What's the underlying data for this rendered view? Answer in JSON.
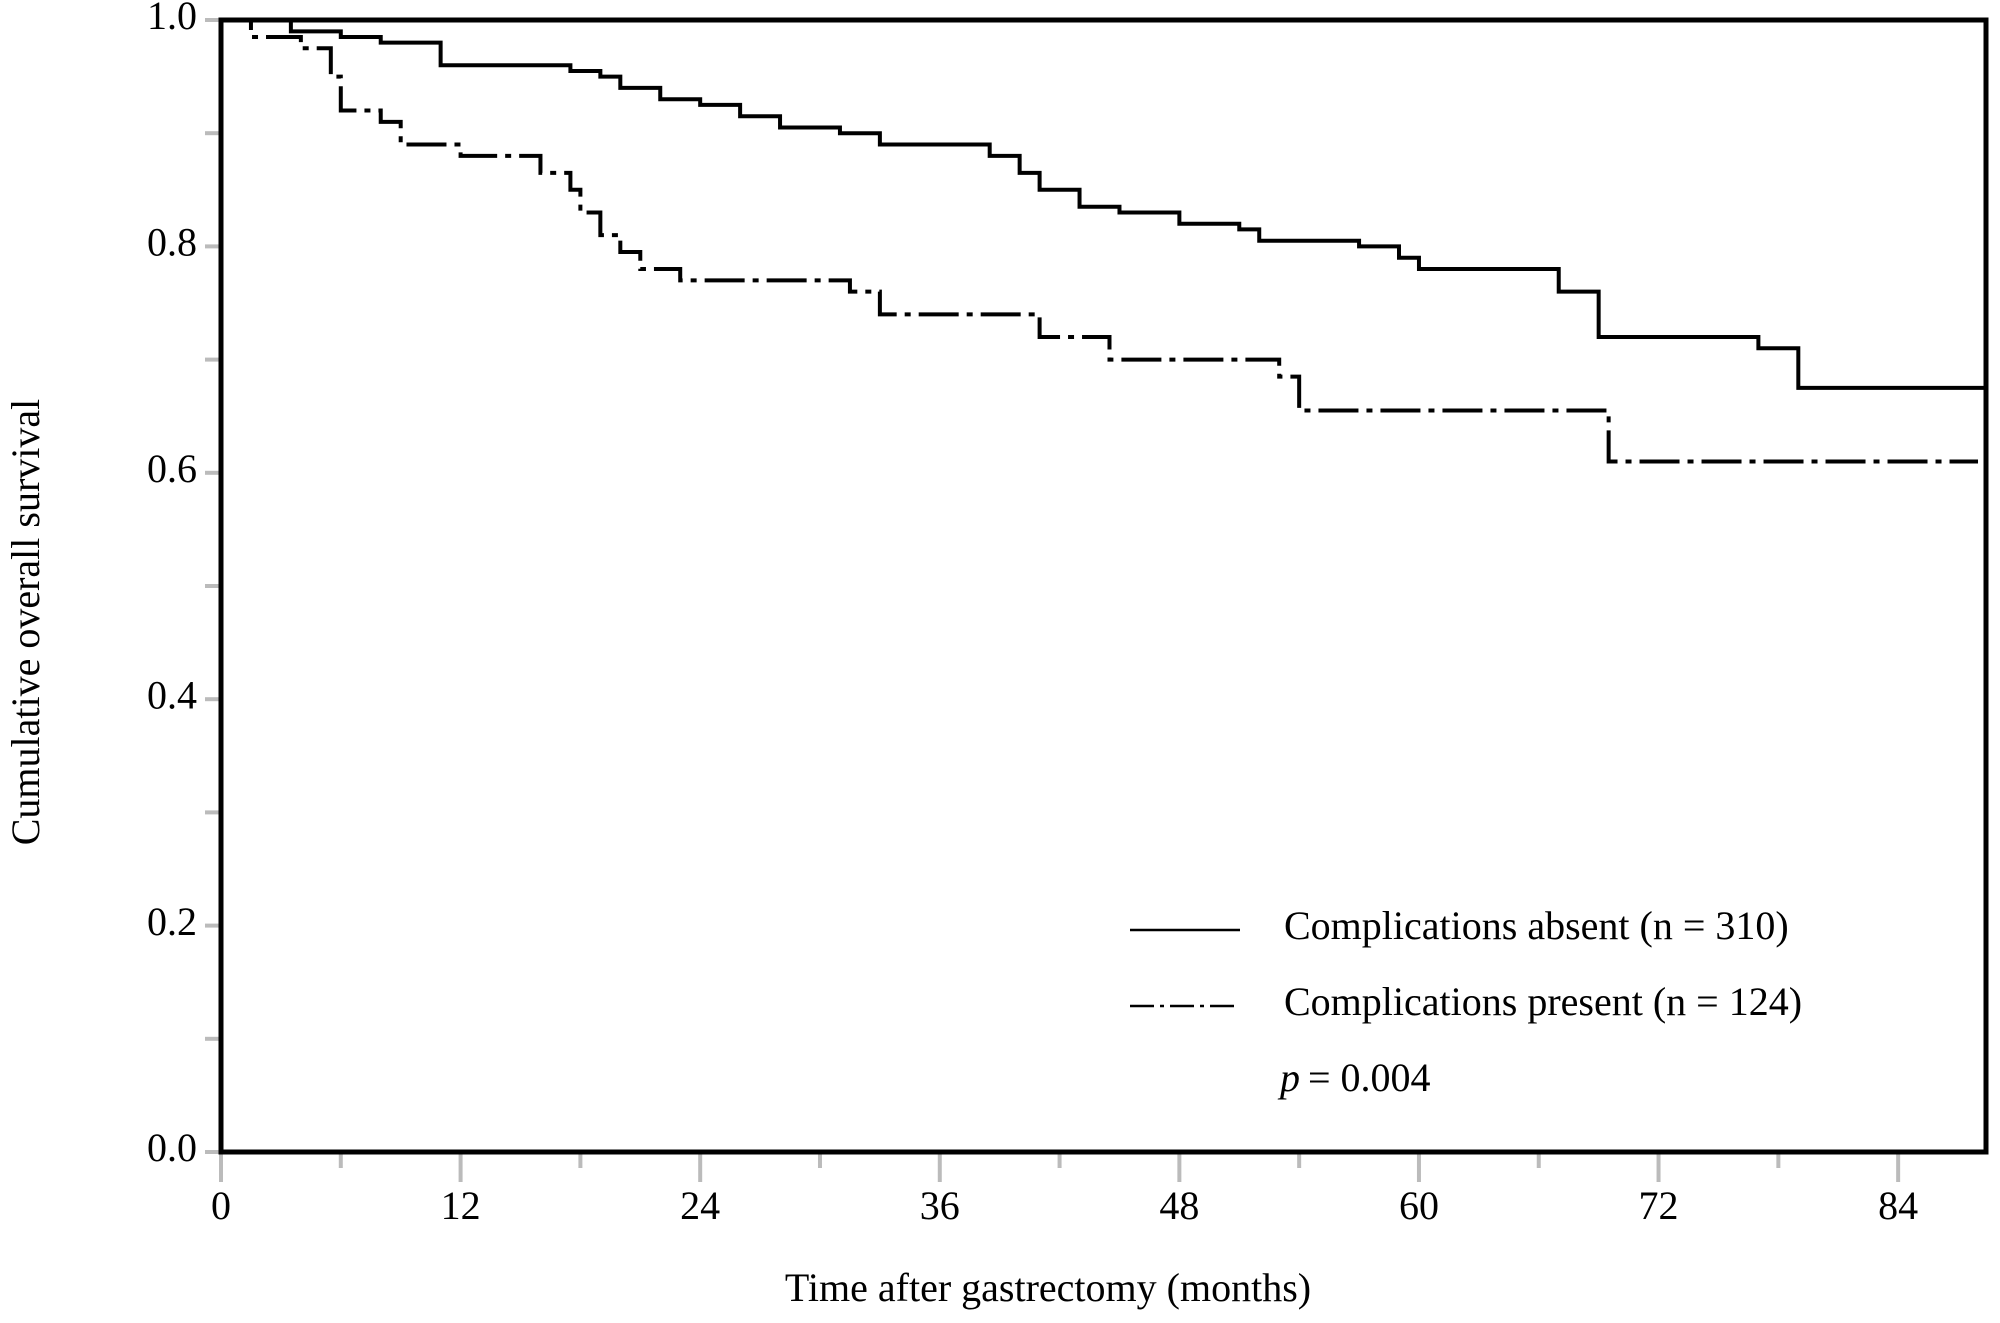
{
  "chart_data": {
    "type": "step",
    "x_label": "Time after gastrectomy (months)",
    "y_label": "Cumulative overall survival",
    "xlim": [
      0,
      88.4
    ],
    "ylim": [
      0,
      1
    ],
    "xticks": [
      0,
      12,
      24,
      36,
      48,
      60,
      72,
      84
    ],
    "xminor_ticks": [
      6,
      18,
      30,
      42,
      54,
      66,
      78
    ],
    "yticks": [
      {
        "value": 0,
        "label": "0.0"
      },
      {
        "value": 0.2,
        "label": "0.2"
      },
      {
        "value": 0.4,
        "label": "0.4"
      },
      {
        "value": 0.6,
        "label": "0.6"
      },
      {
        "value": 0.8,
        "label": "0.8"
      },
      {
        "value": 1,
        "label": "1.0"
      }
    ],
    "yminor_ticks": [
      0.1,
      0.3,
      0.5,
      0.7,
      0.9
    ],
    "legend": "lower right",
    "series": [
      {
        "name": "Complications absent (n = 310)",
        "color": "#000000",
        "linestyle": "solid",
        "x": [
          0,
          3.5,
          6,
          8,
          11,
          17.5,
          19,
          20,
          22,
          24,
          26,
          28,
          31,
          33,
          38.5,
          40,
          41,
          43,
          45,
          48,
          51,
          52,
          57,
          59,
          60,
          67,
          69,
          77,
          79,
          88.4
        ],
        "values": [
          1.0,
          0.99,
          0.985,
          0.98,
          0.96,
          0.955,
          0.95,
          0.94,
          0.93,
          0.925,
          0.915,
          0.905,
          0.9,
          0.89,
          0.88,
          0.865,
          0.85,
          0.835,
          0.83,
          0.82,
          0.815,
          0.805,
          0.8,
          0.79,
          0.78,
          0.76,
          0.72,
          0.71,
          0.675,
          0.675
        ]
      },
      {
        "name": "Complications present (n = 124)",
        "color": "#000000",
        "linestyle": "dashdot",
        "x": [
          0,
          1.5,
          4,
          5.5,
          6,
          8,
          9,
          12,
          16,
          17.5,
          18,
          19,
          20,
          21,
          23,
          31.5,
          33,
          41,
          44.5,
          53,
          54,
          69.5,
          88
        ],
        "values": [
          1.0,
          0.985,
          0.975,
          0.95,
          0.92,
          0.91,
          0.89,
          0.88,
          0.865,
          0.85,
          0.83,
          0.81,
          0.795,
          0.78,
          0.77,
          0.76,
          0.74,
          0.72,
          0.7,
          0.685,
          0.655,
          0.61,
          0.61
        ]
      }
    ],
    "annotation": {
      "variable": "p",
      "text": "= 0.004"
    }
  }
}
